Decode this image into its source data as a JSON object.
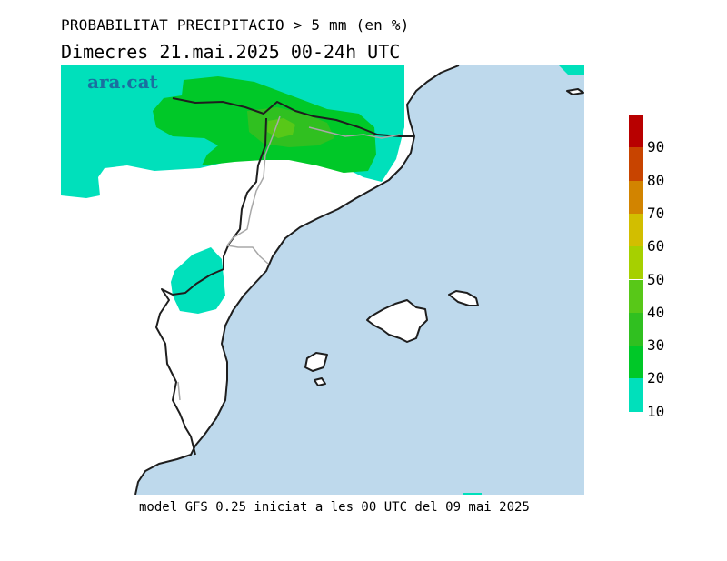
{
  "header": {
    "title": "PROBABILITAT PRECIPITACIO > 5 mm (en %)",
    "subtitle": "Dimecres  21.mai.2025 00-24h UTC"
  },
  "branding": {
    "logo_text": "ara.cat"
  },
  "footer": {
    "model_run": "model GFS 0.25 iniciat a les 00 UTC del 09 mai 2025"
  },
  "colors": {
    "sea": "#bed9ec",
    "land": "#ffffff",
    "coast": "#1e1e1e",
    "border": "#a8a8a8"
  },
  "legend": {
    "levels": [
      {
        "label": "10",
        "color": "#00e0bb"
      },
      {
        "label": "20",
        "color": "#00c828"
      },
      {
        "label": "30",
        "color": "#30c020"
      },
      {
        "label": "40",
        "color": "#58c818"
      },
      {
        "label": "50",
        "color": "#a6d000"
      },
      {
        "label": "60",
        "color": "#d2be00"
      },
      {
        "label": "70",
        "color": "#d28400"
      },
      {
        "label": "80",
        "color": "#c84400"
      },
      {
        "label": "90",
        "color": "#b80000"
      }
    ]
  }
}
